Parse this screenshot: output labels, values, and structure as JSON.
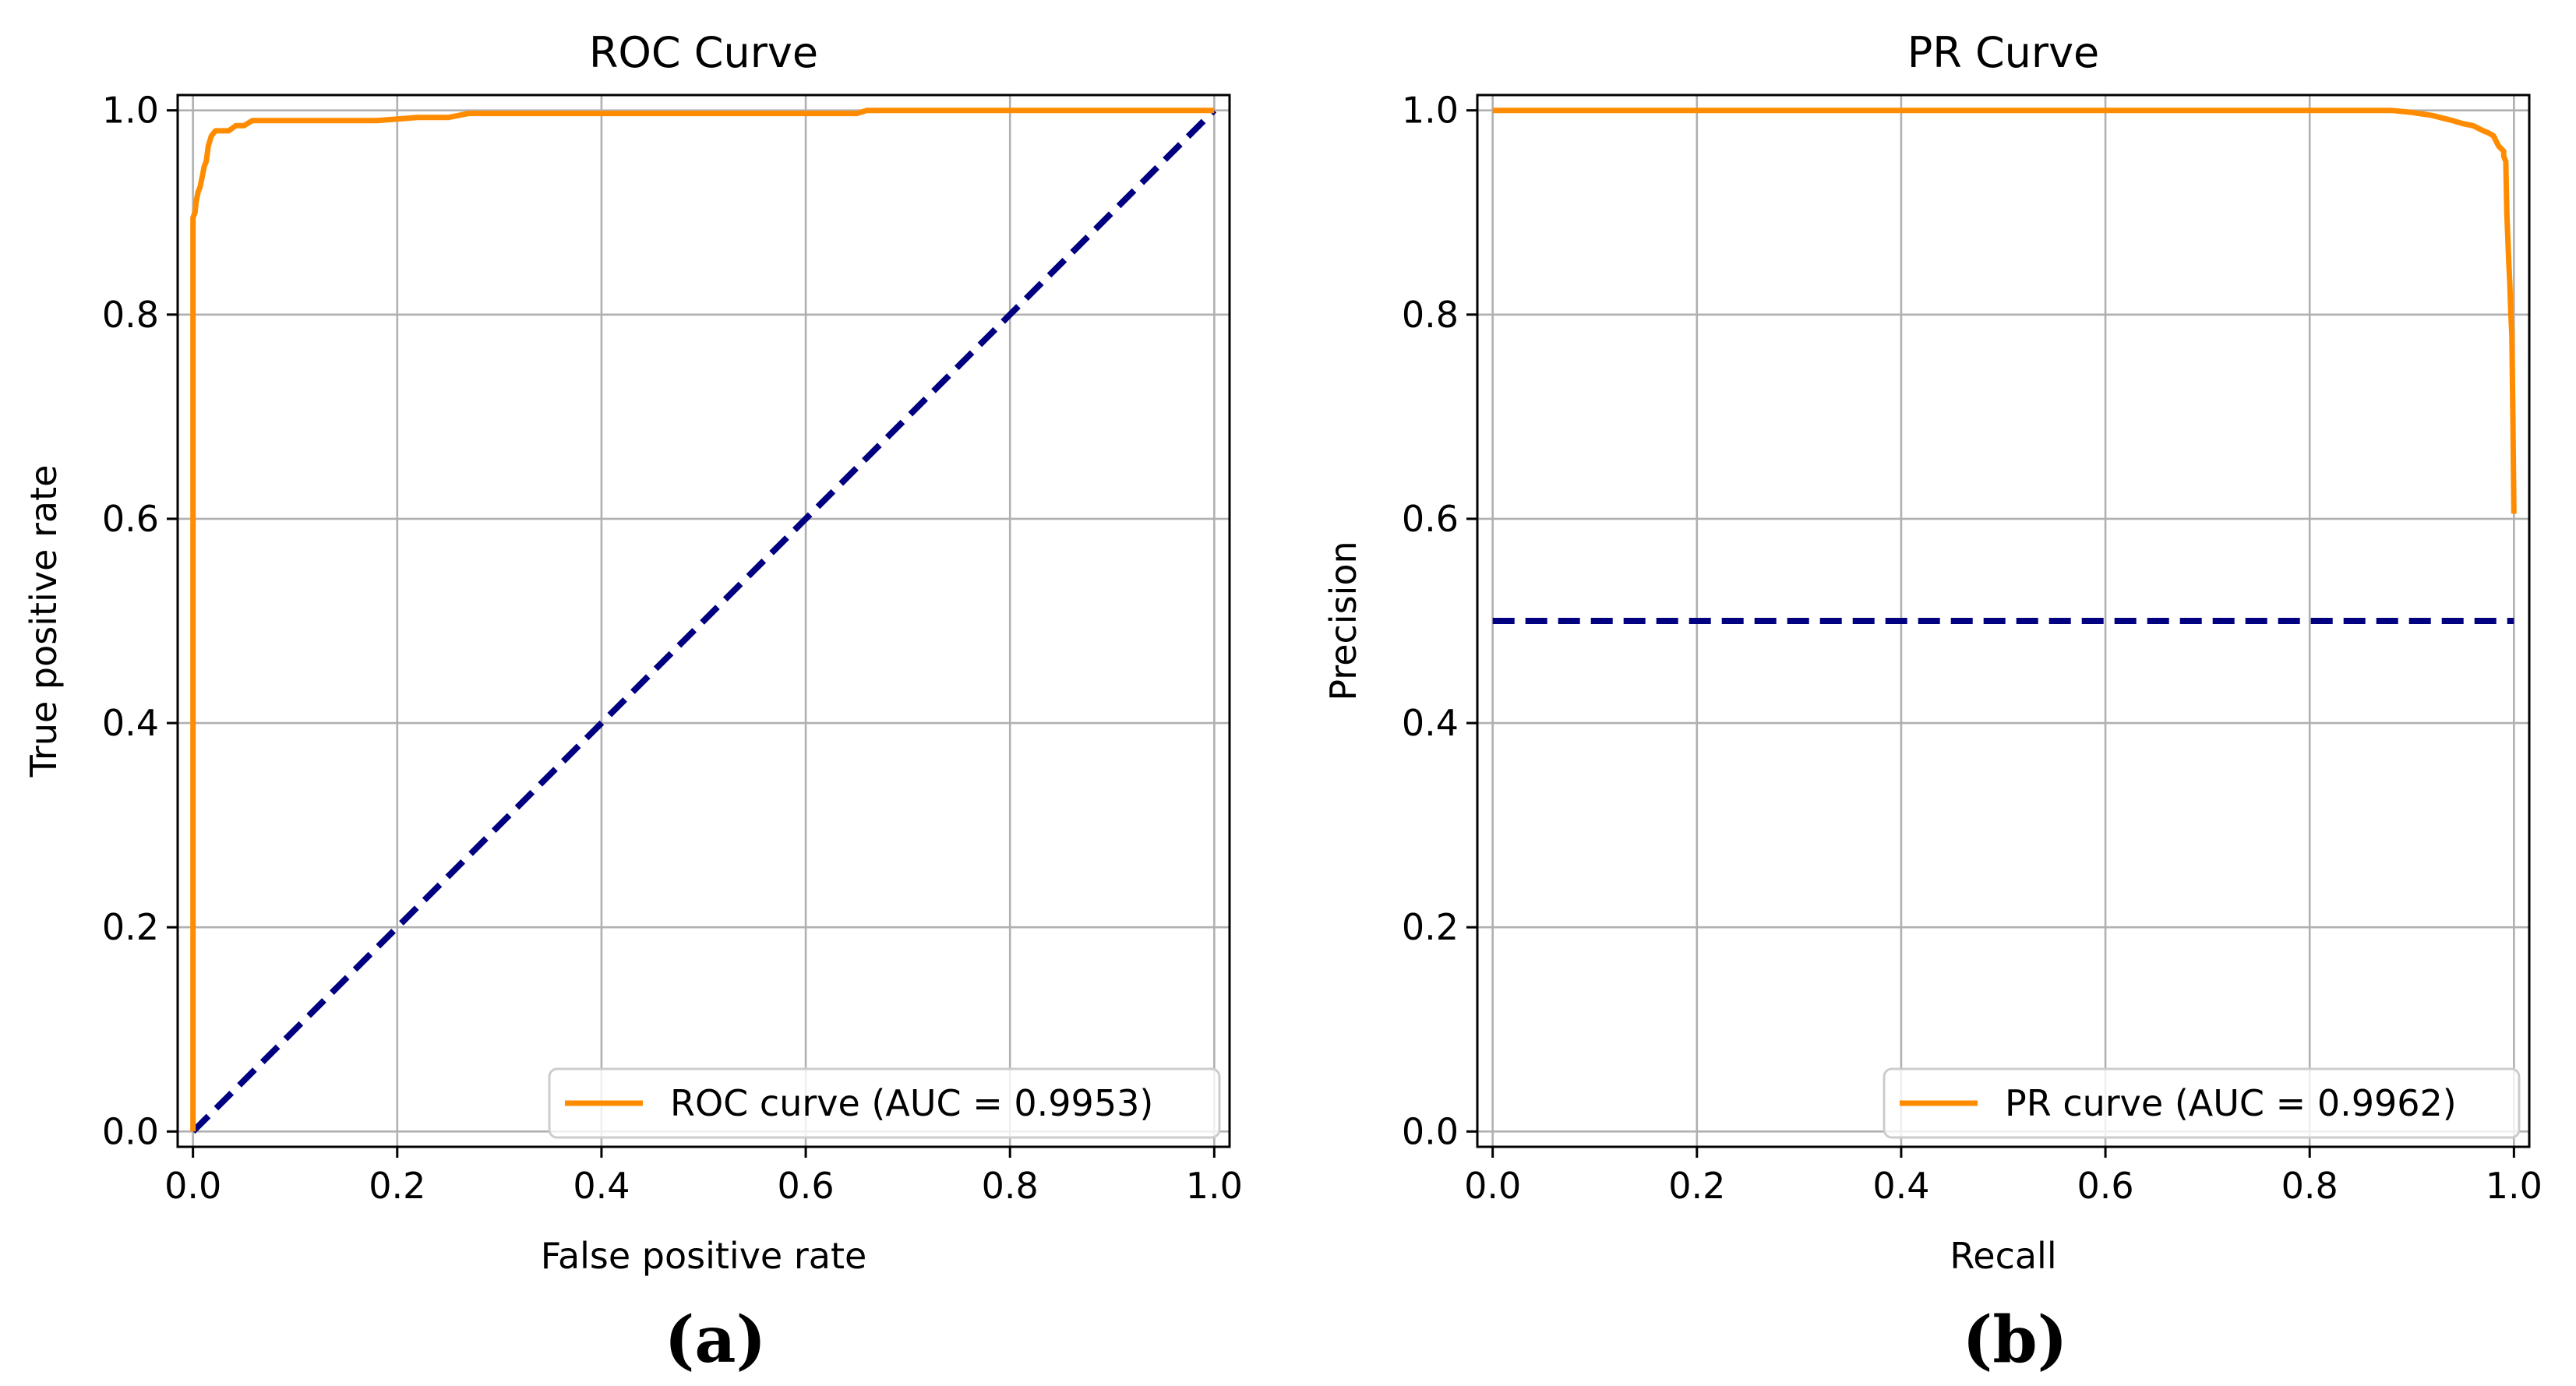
{
  "chart_data": [
    {
      "type": "line",
      "title": "ROC Curve",
      "xlabel": "False positive rate",
      "ylabel": "True positive rate",
      "panel_label": "(a)",
      "xlim": [
        0,
        1
      ],
      "ylim": [
        0,
        1
      ],
      "xticks": [
        "0.0",
        "0.2",
        "0.4",
        "0.6",
        "0.8",
        "1.0"
      ],
      "yticks": [
        "0.0",
        "0.2",
        "0.4",
        "0.6",
        "0.8",
        "1.0"
      ],
      "grid": true,
      "legend_position": "bottom-right",
      "series": [
        {
          "name": "ROC curve (AUC = 0.9953)",
          "color": "#ff8c00",
          "style": "solid",
          "x": [
            0,
            0,
            0.002,
            0.003,
            0.004,
            0.005,
            0.007,
            0.009,
            0.011,
            0.013,
            0.015,
            0.018,
            0.022,
            0.03,
            0.035,
            0.042,
            0.05,
            0.058,
            0.07,
            0.09,
            0.12,
            0.15,
            0.18,
            0.22,
            0.25,
            0.27,
            0.3,
            0.35,
            0.4,
            0.5,
            0.6,
            0.65,
            0.66,
            0.7,
            0.8,
            0.9,
            1.0
          ],
          "y": [
            0,
            0.895,
            0.9,
            0.91,
            0.915,
            0.92,
            0.925,
            0.935,
            0.945,
            0.95,
            0.965,
            0.975,
            0.98,
            0.98,
            0.98,
            0.985,
            0.985,
            0.99,
            0.99,
            0.99,
            0.99,
            0.99,
            0.99,
            0.993,
            0.993,
            0.997,
            0.997,
            0.997,
            0.997,
            0.997,
            0.997,
            0.997,
            1.0,
            1.0,
            1.0,
            1.0,
            1.0
          ]
        },
        {
          "name": "",
          "color": "#000080",
          "style": "dashed",
          "x": [
            0,
            1
          ],
          "y": [
            0,
            1
          ]
        }
      ]
    },
    {
      "type": "line",
      "title": "PR Curve",
      "xlabel": "Recall",
      "ylabel": "Precision",
      "panel_label": "(b)",
      "xlim": [
        0,
        1
      ],
      "ylim": [
        0,
        1
      ],
      "xticks": [
        "0.0",
        "0.2",
        "0.4",
        "0.6",
        "0.8",
        "1.0"
      ],
      "yticks": [
        "0.0",
        "0.2",
        "0.4",
        "0.6",
        "0.8",
        "1.0"
      ],
      "grid": true,
      "legend_position": "bottom-right",
      "series": [
        {
          "name": "PR curve (AUC = 0.9962)",
          "color": "#ff8c00",
          "style": "solid",
          "x": [
            0,
            0.2,
            0.4,
            0.6,
            0.8,
            0.88,
            0.9,
            0.92,
            0.94,
            0.95,
            0.96,
            0.97,
            0.975,
            0.98,
            0.985,
            0.99,
            0.99,
            0.992,
            0.993,
            0.995,
            0.996,
            0.997,
            0.998,
            0.999,
            1.0
          ],
          "y": [
            1.0,
            1.0,
            1.0,
            1.0,
            1.0,
            1.0,
            0.998,
            0.995,
            0.99,
            0.987,
            0.985,
            0.98,
            0.978,
            0.975,
            0.965,
            0.96,
            0.955,
            0.95,
            0.9,
            0.85,
            0.83,
            0.8,
            0.78,
            0.7,
            0.605
          ]
        },
        {
          "name": "",
          "color": "#000080",
          "style": "dashed",
          "x": [
            0,
            1
          ],
          "y": [
            0.5,
            0.5
          ]
        }
      ]
    }
  ]
}
